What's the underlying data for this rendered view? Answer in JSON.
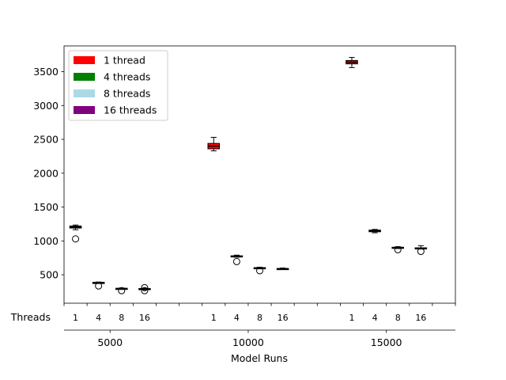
{
  "chart_data": {
    "type": "box",
    "xlabel": "Model Runs",
    "threads_row_label": "Threads",
    "ylim": [
      80,
      3880
    ],
    "yticks": [
      500,
      1000,
      1500,
      2000,
      2500,
      3000,
      3500
    ],
    "groups": [
      "5000",
      "10000",
      "15000"
    ],
    "thread_labels": [
      "1",
      "4",
      "8",
      "16"
    ],
    "legend": {
      "placement": "top-left",
      "entries": [
        {
          "label": "1 thread",
          "color": "#ff0000"
        },
        {
          "label": "4 threads",
          "color": "#008000"
        },
        {
          "label": "8 threads",
          "color": "#add8e6"
        },
        {
          "label": "16 threads",
          "color": "#800080"
        }
      ]
    },
    "boxes": [
      {
        "group": "5000",
        "threads": "1",
        "whislo": 1165,
        "q1": 1190,
        "med": 1205,
        "q3": 1220,
        "whishi": 1235,
        "fliers": [
          1030
        ],
        "color": "#ff0000"
      },
      {
        "group": "5000",
        "threads": "4",
        "whislo": 375,
        "q1": 380,
        "med": 384,
        "q3": 388,
        "whishi": 393,
        "fliers": [
          335
        ],
        "color": "#008000"
      },
      {
        "group": "5000",
        "threads": "8",
        "whislo": 288,
        "q1": 292,
        "med": 296,
        "q3": 300,
        "whishi": 305,
        "fliers": [
          265
        ],
        "color": "#add8e6"
      },
      {
        "group": "5000",
        "threads": "16",
        "whislo": 282,
        "q1": 287,
        "med": 292,
        "q3": 297,
        "whishi": 303,
        "fliers": [
          310,
          265
        ],
        "color": "#800080"
      },
      {
        "group": "10000",
        "threads": "1",
        "whislo": 2330,
        "q1": 2360,
        "med": 2400,
        "q3": 2440,
        "whishi": 2530,
        "fliers": [],
        "color": "#ff0000"
      },
      {
        "group": "10000",
        "threads": "4",
        "whislo": 760,
        "q1": 765,
        "med": 772,
        "q3": 780,
        "whishi": 790,
        "fliers": [
          695
        ],
        "color": "#008000"
      },
      {
        "group": "10000",
        "threads": "8",
        "whislo": 590,
        "q1": 595,
        "med": 600,
        "q3": 605,
        "whishi": 612,
        "fliers": [
          560
        ],
        "color": "#add8e6"
      },
      {
        "group": "10000",
        "threads": "16",
        "whislo": 578,
        "q1": 583,
        "med": 588,
        "q3": 593,
        "whishi": 600,
        "fliers": [],
        "color": "#800080"
      },
      {
        "group": "15000",
        "threads": "1",
        "whislo": 3560,
        "q1": 3615,
        "med": 3640,
        "q3": 3665,
        "whishi": 3710,
        "fliers": [],
        "color": "#ff0000"
      },
      {
        "group": "15000",
        "threads": "4",
        "whislo": 1120,
        "q1": 1135,
        "med": 1150,
        "q3": 1160,
        "whishi": 1170,
        "fliers": [],
        "color": "#008000"
      },
      {
        "group": "15000",
        "threads": "8",
        "whislo": 888,
        "q1": 893,
        "med": 900,
        "q3": 907,
        "whishi": 915,
        "fliers": [
          870
        ],
        "color": "#add8e6"
      },
      {
        "group": "15000",
        "threads": "16",
        "whislo": 880,
        "q1": 886,
        "med": 892,
        "q3": 898,
        "whishi": 930,
        "fliers": [
          845
        ],
        "color": "#800080"
      }
    ]
  }
}
